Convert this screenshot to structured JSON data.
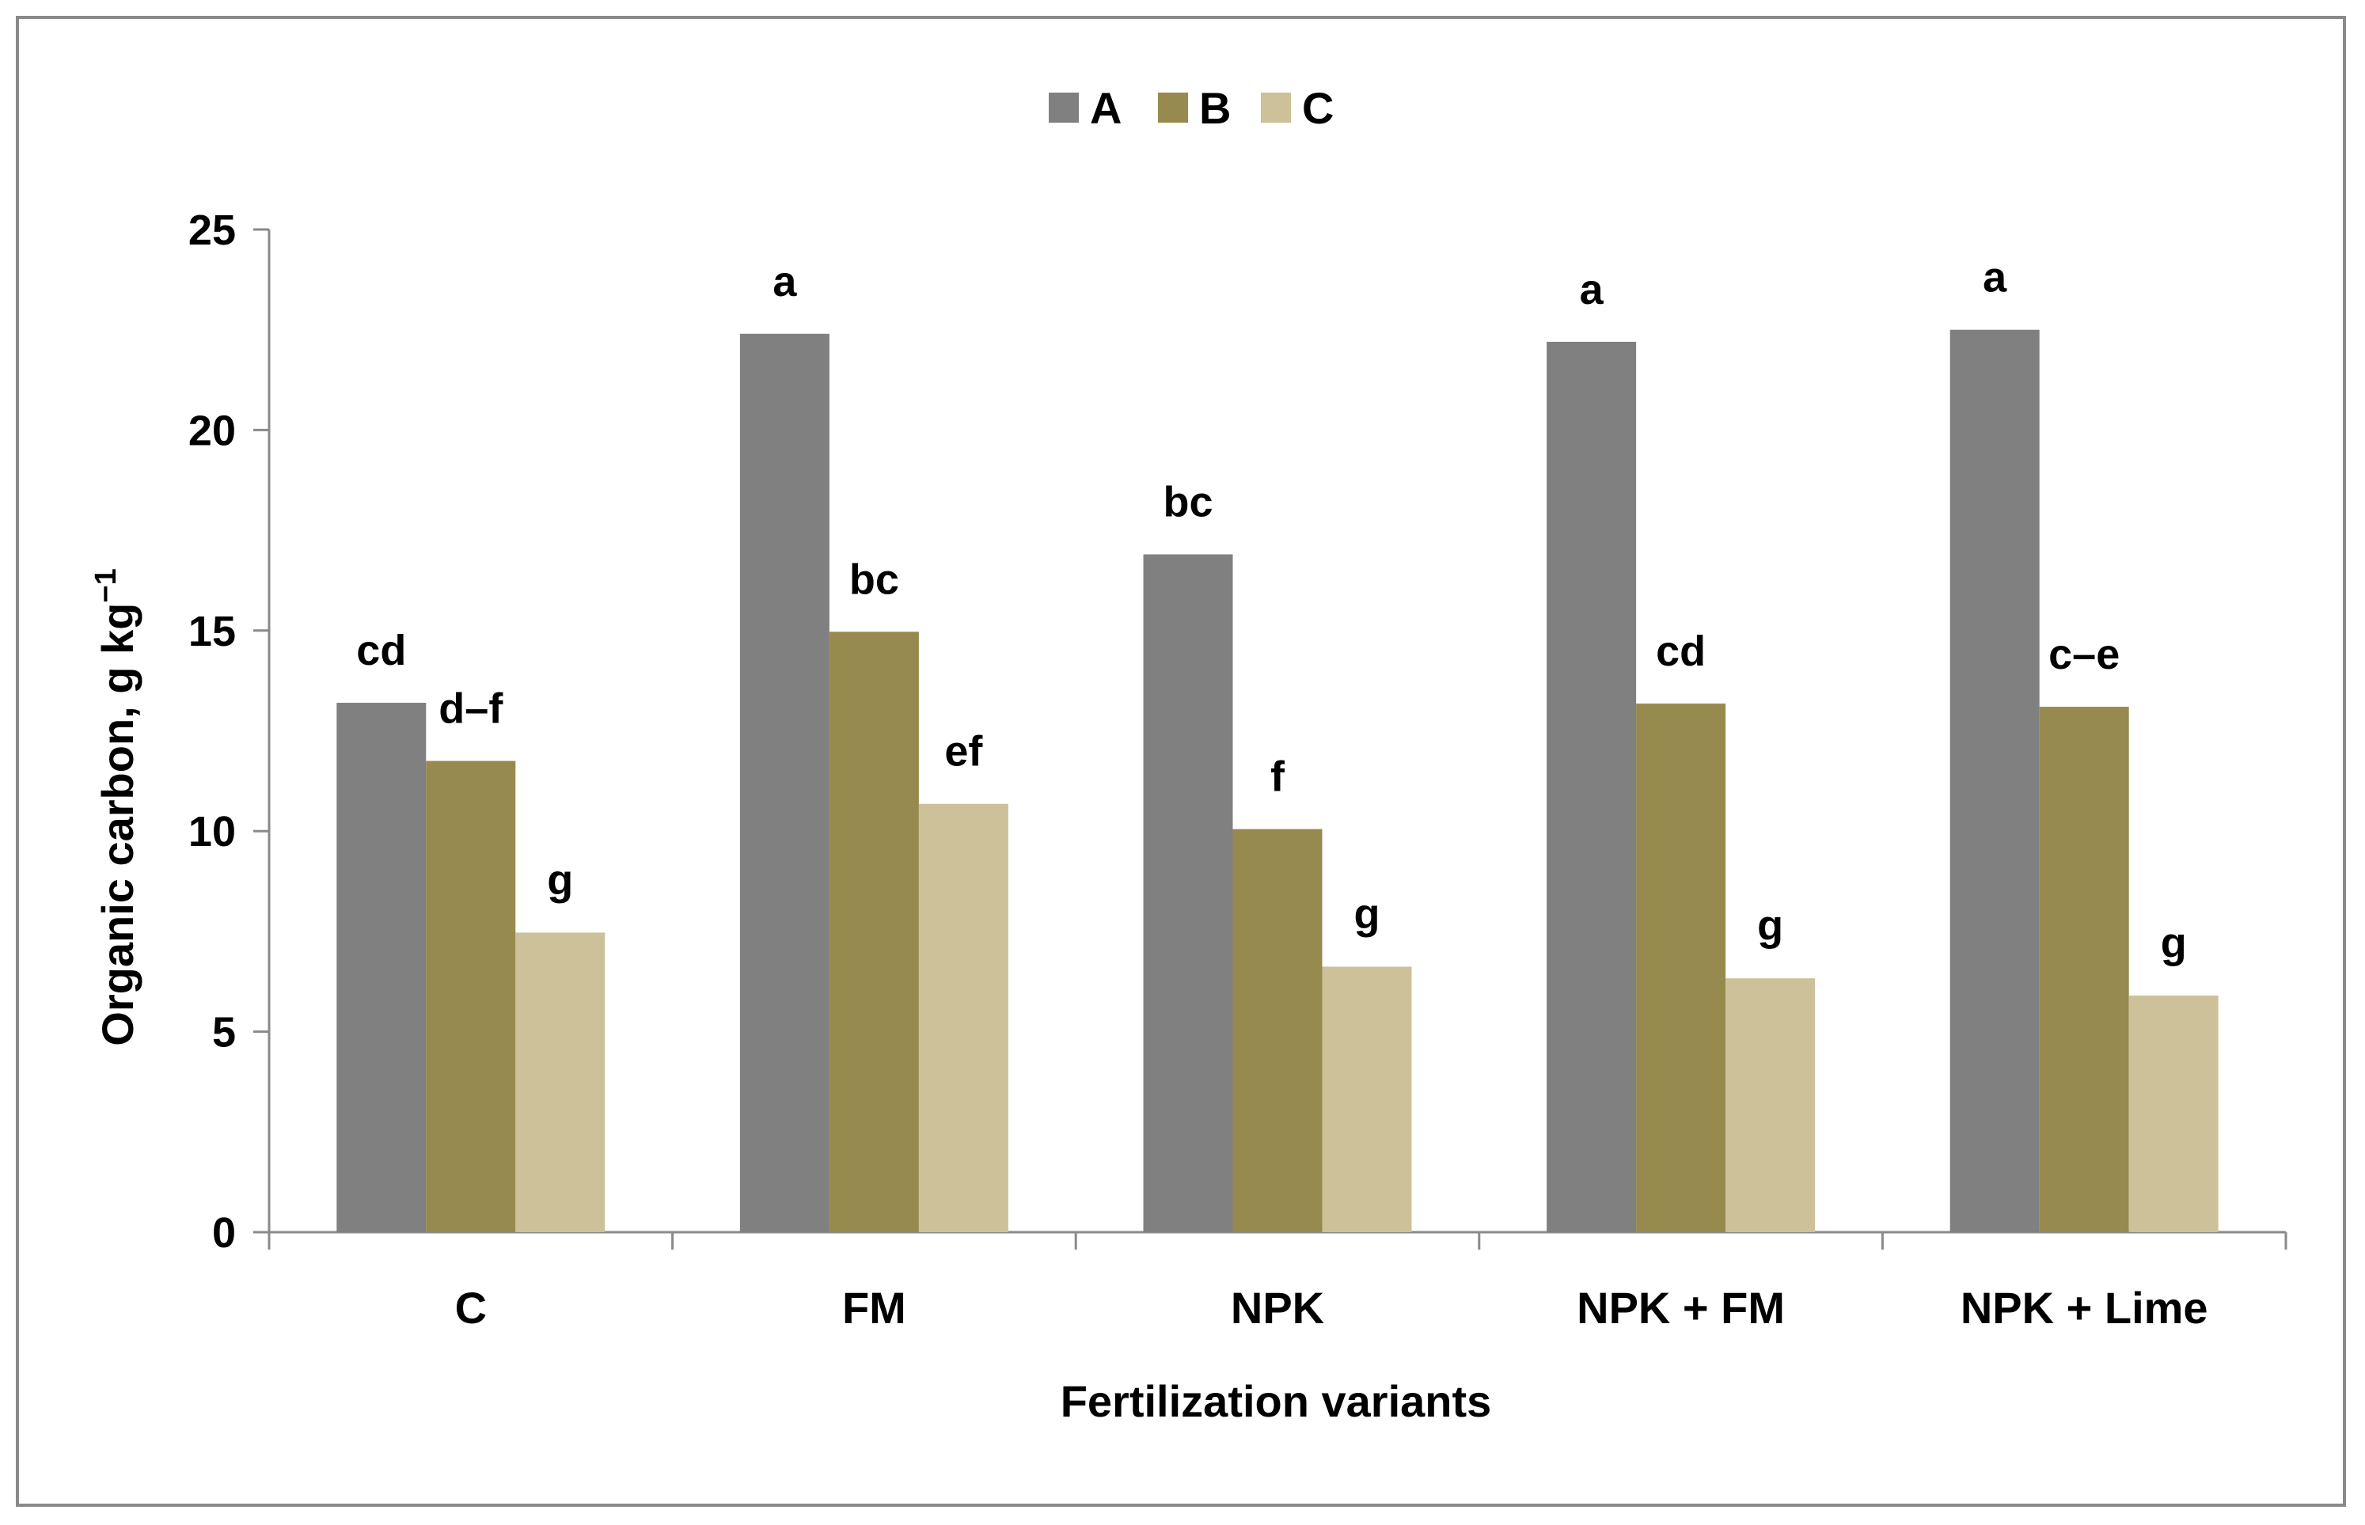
{
  "chart_data": {
    "type": "bar",
    "title": "",
    "xlabel": "Fertilization variants",
    "ylabel": "Organic carbon, g kg",
    "ylabel_superscript": "−1",
    "ylim": [
      0,
      25
    ],
    "yticks": [
      "0",
      "5",
      "10",
      "15",
      "20",
      "25"
    ],
    "legend_position": "top-center",
    "categories": [
      "C",
      "FM",
      "NPK",
      "NPK + FM",
      "NPK + Lime"
    ],
    "series": [
      {
        "name": "A",
        "color": "#808080",
        "values": [
          13.2,
          22.4,
          16.9,
          22.2,
          22.5
        ],
        "labels": [
          "cd",
          "a",
          "bc",
          "a",
          "a"
        ]
      },
      {
        "name": "B",
        "color": "#978a4e",
        "values": [
          11.75,
          14.97,
          10.05,
          13.18,
          13.1
        ],
        "labels": [
          "d–f",
          "bc",
          "f",
          "cd",
          "c–e"
        ]
      },
      {
        "name": "C",
        "color": "#ccc199",
        "values": [
          7.47,
          10.68,
          6.62,
          6.33,
          5.9
        ],
        "labels": [
          "g",
          "ef",
          "g",
          "g",
          "g"
        ]
      }
    ]
  }
}
